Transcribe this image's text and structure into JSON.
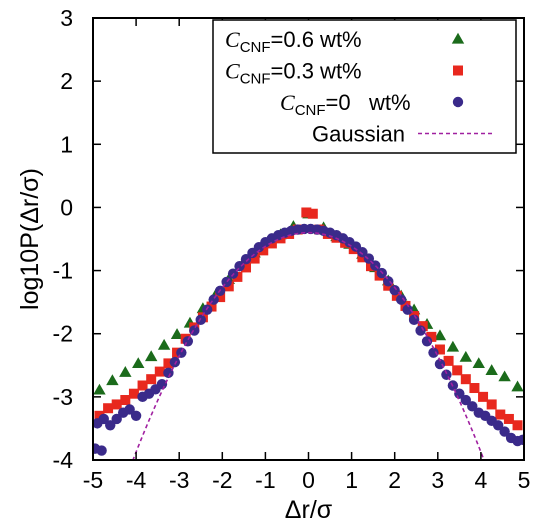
{
  "chart_data": {
    "type": "scatter",
    "title": "",
    "xlabel": "Δr/σ",
    "ylabel": "log10P(Δr/σ)",
    "xlim": [
      -5,
      5
    ],
    "ylim": [
      -4,
      3
    ],
    "x_ticks": [
      -5,
      -4,
      -3,
      -2,
      -1,
      0,
      1,
      2,
      3,
      4,
      5
    ],
    "y_ticks": [
      -4,
      -3,
      -2,
      -1,
      0,
      1,
      2,
      3
    ],
    "grid": false,
    "legend_placement": "top-right",
    "legend": [
      {
        "symbol": "C",
        "sub": "CNF",
        "text": "=0.6 wt%",
        "series": "cnf06"
      },
      {
        "symbol": "C",
        "sub": "CNF",
        "text": "=0.3 wt%",
        "series": "cnf03"
      },
      {
        "symbol": "C",
        "sub": "CNF",
        "text": "=0   wt%",
        "series": "cnf0"
      },
      {
        "symbol": "",
        "sub": "",
        "text": "Gaussian",
        "series": "gauss"
      }
    ],
    "series": [
      {
        "id": "cnf06",
        "marker": "triangle",
        "color": "#1b6b1b",
        "points": [
          [
            -4.85,
            -2.89
          ],
          [
            -4.55,
            -2.74
          ],
          [
            -4.25,
            -2.61
          ],
          [
            -3.95,
            -2.47
          ],
          [
            -3.65,
            -2.36
          ],
          [
            -3.35,
            -2.18
          ],
          [
            -3.05,
            -2.01
          ],
          [
            -2.75,
            -1.83
          ],
          [
            -2.45,
            -1.6
          ],
          [
            -2.15,
            -1.38
          ],
          [
            -1.85,
            -1.14
          ],
          [
            -1.55,
            -0.92
          ],
          [
            -1.25,
            -0.72
          ],
          [
            -0.95,
            -0.55
          ],
          [
            -0.65,
            -0.43
          ],
          [
            -0.35,
            -0.3
          ],
          [
            0.0,
            -0.1
          ],
          [
            0.35,
            -0.32
          ],
          [
            0.65,
            -0.46
          ],
          [
            0.95,
            -0.58
          ],
          [
            1.25,
            -0.74
          ],
          [
            1.55,
            -0.95
          ],
          [
            1.85,
            -1.16
          ],
          [
            2.15,
            -1.4
          ],
          [
            2.45,
            -1.62
          ],
          [
            2.75,
            -1.85
          ],
          [
            3.05,
            -2.03
          ],
          [
            3.35,
            -2.21
          ],
          [
            3.65,
            -2.37
          ],
          [
            3.95,
            -2.47
          ],
          [
            4.25,
            -2.58
          ],
          [
            4.55,
            -2.68
          ],
          [
            4.85,
            -2.84
          ]
        ]
      },
      {
        "id": "cnf03",
        "marker": "square",
        "color": "#e8281e",
        "points": [
          [
            -4.85,
            -3.3
          ],
          [
            -4.65,
            -3.18
          ],
          [
            -4.45,
            -3.12
          ],
          [
            -4.25,
            -3.05
          ],
          [
            -4.05,
            -2.95
          ],
          [
            -3.85,
            -2.82
          ],
          [
            -3.65,
            -2.72
          ],
          [
            -3.45,
            -2.6
          ],
          [
            -3.25,
            -2.47
          ],
          [
            -3.05,
            -2.3
          ],
          [
            -2.85,
            -2.08
          ],
          [
            -2.65,
            -1.9
          ],
          [
            -2.45,
            -1.74
          ],
          [
            -2.25,
            -1.57
          ],
          [
            -2.05,
            -1.42
          ],
          [
            -1.85,
            -1.25
          ],
          [
            -1.65,
            -1.1
          ],
          [
            -1.45,
            -0.95
          ],
          [
            -1.25,
            -0.81
          ],
          [
            -1.05,
            -0.68
          ],
          [
            -0.85,
            -0.57
          ],
          [
            -0.65,
            -0.49
          ],
          [
            -0.45,
            -0.42
          ],
          [
            -0.25,
            -0.35
          ],
          [
            -0.05,
            -0.08
          ],
          [
            0.1,
            -0.1
          ],
          [
            0.25,
            -0.35
          ],
          [
            0.45,
            -0.42
          ],
          [
            0.65,
            -0.48
          ],
          [
            0.85,
            -0.56
          ],
          [
            1.05,
            -0.66
          ],
          [
            1.25,
            -0.79
          ],
          [
            1.45,
            -0.93
          ],
          [
            1.65,
            -1.08
          ],
          [
            1.85,
            -1.24
          ],
          [
            2.05,
            -1.4
          ],
          [
            2.25,
            -1.56
          ],
          [
            2.45,
            -1.72
          ],
          [
            2.65,
            -1.88
          ],
          [
            2.85,
            -2.05
          ],
          [
            3.05,
            -2.25
          ],
          [
            3.25,
            -2.43
          ],
          [
            3.45,
            -2.58
          ],
          [
            3.65,
            -2.72
          ],
          [
            3.85,
            -2.86
          ],
          [
            4.05,
            -3.0
          ],
          [
            4.25,
            -3.12
          ],
          [
            4.45,
            -3.28
          ],
          [
            4.65,
            -3.35
          ],
          [
            4.85,
            -3.45
          ]
        ]
      },
      {
        "id": "cnf0",
        "marker": "circle",
        "color": "#3a2a8a",
        "points": [
          [
            -4.9,
            -3.42
          ],
          [
            -4.75,
            -3.35
          ],
          [
            -4.6,
            -3.45
          ],
          [
            -4.45,
            -3.35
          ],
          [
            -4.3,
            -3.25
          ],
          [
            -4.15,
            -3.2
          ],
          [
            -4.0,
            -3.3
          ],
          [
            -3.85,
            -3.0
          ],
          [
            -3.7,
            -2.95
          ],
          [
            -3.55,
            -2.88
          ],
          [
            -3.4,
            -2.8
          ],
          [
            -3.25,
            -2.62
          ],
          [
            -3.1,
            -2.45
          ],
          [
            -2.95,
            -2.3
          ],
          [
            -2.8,
            -2.12
          ],
          [
            -2.65,
            -1.95
          ],
          [
            -2.5,
            -1.78
          ],
          [
            -2.35,
            -1.62
          ],
          [
            -2.2,
            -1.46
          ],
          [
            -2.05,
            -1.32
          ],
          [
            -1.9,
            -1.18
          ],
          [
            -1.75,
            -1.05
          ],
          [
            -1.6,
            -0.93
          ],
          [
            -1.45,
            -0.82
          ],
          [
            -1.3,
            -0.72
          ],
          [
            -1.15,
            -0.63
          ],
          [
            -1.0,
            -0.55
          ],
          [
            -0.85,
            -0.49
          ],
          [
            -0.7,
            -0.44
          ],
          [
            -0.55,
            -0.4
          ],
          [
            -0.4,
            -0.37
          ],
          [
            -0.25,
            -0.35
          ],
          [
            -0.1,
            -0.34
          ],
          [
            0.05,
            -0.34
          ],
          [
            0.2,
            -0.35
          ],
          [
            0.35,
            -0.37
          ],
          [
            0.5,
            -0.4
          ],
          [
            0.65,
            -0.44
          ],
          [
            0.8,
            -0.49
          ],
          [
            0.95,
            -0.55
          ],
          [
            1.1,
            -0.62
          ],
          [
            1.25,
            -0.71
          ],
          [
            1.4,
            -0.81
          ],
          [
            1.55,
            -0.92
          ],
          [
            1.7,
            -1.04
          ],
          [
            1.85,
            -1.17
          ],
          [
            2.0,
            -1.31
          ],
          [
            2.15,
            -1.46
          ],
          [
            2.3,
            -1.62
          ],
          [
            2.45,
            -1.78
          ],
          [
            2.6,
            -1.95
          ],
          [
            2.75,
            -2.12
          ],
          [
            2.9,
            -2.3
          ],
          [
            3.05,
            -2.48
          ],
          [
            3.2,
            -2.65
          ],
          [
            3.35,
            -2.82
          ],
          [
            3.5,
            -2.95
          ],
          [
            3.65,
            -3.05
          ],
          [
            3.8,
            -3.15
          ],
          [
            3.95,
            -3.25
          ],
          [
            4.1,
            -3.3
          ],
          [
            4.25,
            -3.38
          ],
          [
            4.4,
            -3.45
          ],
          [
            4.55,
            -3.55
          ],
          [
            4.7,
            -3.65
          ],
          [
            4.85,
            -3.7
          ],
          [
            4.97,
            -3.68
          ],
          [
            -4.95,
            -3.82
          ],
          [
            -4.8,
            -3.85
          ]
        ]
      },
      {
        "id": "gauss",
        "marker": "dashed-line",
        "color": "#a020a0",
        "mu": 0,
        "sigma": 1,
        "x_range": [
          -4.25,
          4.25
        ]
      }
    ]
  }
}
